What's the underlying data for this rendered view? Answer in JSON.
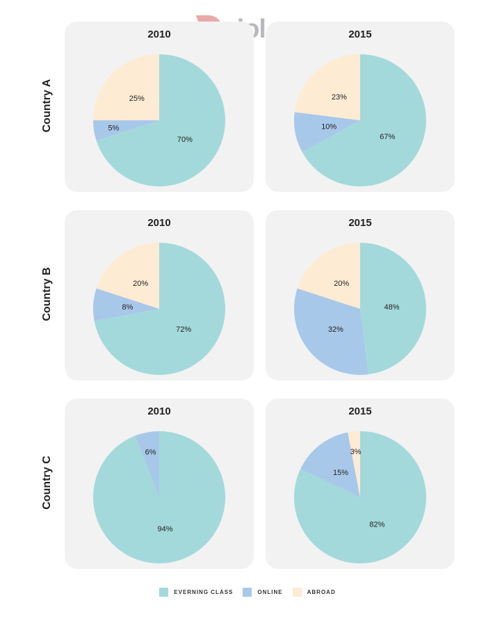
{
  "logo": {
    "text": "dol.vn"
  },
  "colors": {
    "Evening class": "#a3d9db",
    "Online": "#a8c8ea",
    "Abroad": "#fdebd3"
  },
  "legend": [
    "EVERNING CLASS",
    "ONLINE",
    "ABROAD"
  ],
  "row_labels": [
    "Country A",
    "Country B",
    "Country C"
  ],
  "chart_data": [
    {
      "type": "pie",
      "title": "2010",
      "row": "Country A",
      "categories": [
        "Evening class",
        "Online",
        "Abroad"
      ],
      "values": [
        70,
        5,
        25
      ],
      "labels": [
        "70%",
        "5%",
        "25%"
      ]
    },
    {
      "type": "pie",
      "title": "2015",
      "row": "Country A",
      "categories": [
        "Evening class",
        "Online",
        "Abroad"
      ],
      "values": [
        67,
        10,
        23
      ],
      "labels": [
        "67%",
        "10%",
        "23%"
      ]
    },
    {
      "type": "pie",
      "title": "2010",
      "row": "Country B",
      "categories": [
        "Evening class",
        "Online",
        "Abroad"
      ],
      "values": [
        72,
        8,
        20
      ],
      "labels": [
        "72%",
        "8%",
        "20%"
      ]
    },
    {
      "type": "pie",
      "title": "2015",
      "row": "Country B",
      "categories": [
        "Evening class",
        "Online",
        "Abroad"
      ],
      "values": [
        48,
        32,
        20
      ],
      "labels": [
        "48%",
        "32%",
        "20%"
      ]
    },
    {
      "type": "pie",
      "title": "2010",
      "row": "Country C",
      "categories": [
        "Evening class",
        "Online"
      ],
      "values": [
        94,
        6
      ],
      "labels": [
        "94%",
        "6%"
      ]
    },
    {
      "type": "pie",
      "title": "2015",
      "row": "Country C",
      "categories": [
        "Evening class",
        "Online",
        "Abroad"
      ],
      "values": [
        82,
        15,
        3
      ],
      "labels": [
        "82%",
        "15%",
        "3%"
      ]
    }
  ]
}
